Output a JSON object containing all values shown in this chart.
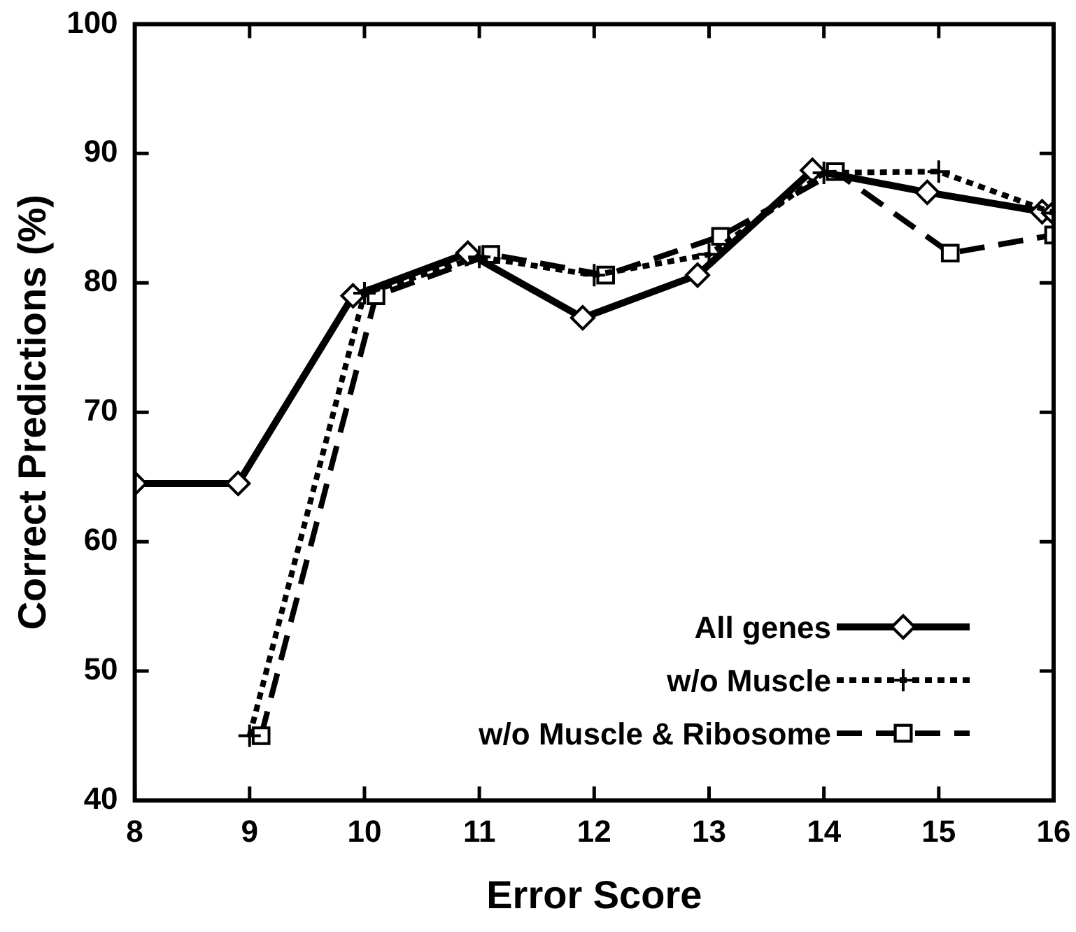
{
  "chart_data": {
    "type": "line",
    "xlabel": "Error Score",
    "ylabel": "Correct Predictions (%)",
    "xlim": [
      8,
      16
    ],
    "xticks": [
      8,
      9,
      10,
      11,
      12,
      13,
      14,
      15,
      16
    ],
    "ylim": [
      40,
      100
    ],
    "yticks": [
      40,
      50,
      60,
      70,
      80,
      90,
      100
    ],
    "grid": false,
    "legend": "bottom right",
    "series": [
      {
        "name": "All genes",
        "color": "#000000",
        "marker": "diamond",
        "line_style": "solid",
        "x": [
          8,
          8.9,
          9.9,
          10.9,
          11.9,
          12.9,
          13.9,
          14.9,
          15.9,
          16
        ],
        "values": [
          64.5,
          64.5,
          79,
          82.3,
          77.3,
          80.6,
          88.7,
          87,
          85.5,
          85.4
        ]
      },
      {
        "name": "w/o Muscle",
        "color": "#000000",
        "marker": "cross",
        "line_style": "dotted",
        "x": [
          9,
          10,
          11,
          12,
          13,
          14,
          15,
          16
        ],
        "values": [
          45,
          79.2,
          82,
          80.6,
          82.2,
          88.5,
          88.6,
          85.4
        ]
      },
      {
        "name": "w/o Muscle & Ribosome",
        "color": "#000000",
        "marker": "square",
        "line_style": "dashed",
        "x": [
          9.1,
          10.1,
          11.1,
          12.1,
          13.1,
          14.1,
          15.1,
          16
        ],
        "values": [
          45,
          79,
          82.2,
          80.6,
          83.6,
          88.6,
          82.3,
          83.7
        ]
      }
    ]
  }
}
